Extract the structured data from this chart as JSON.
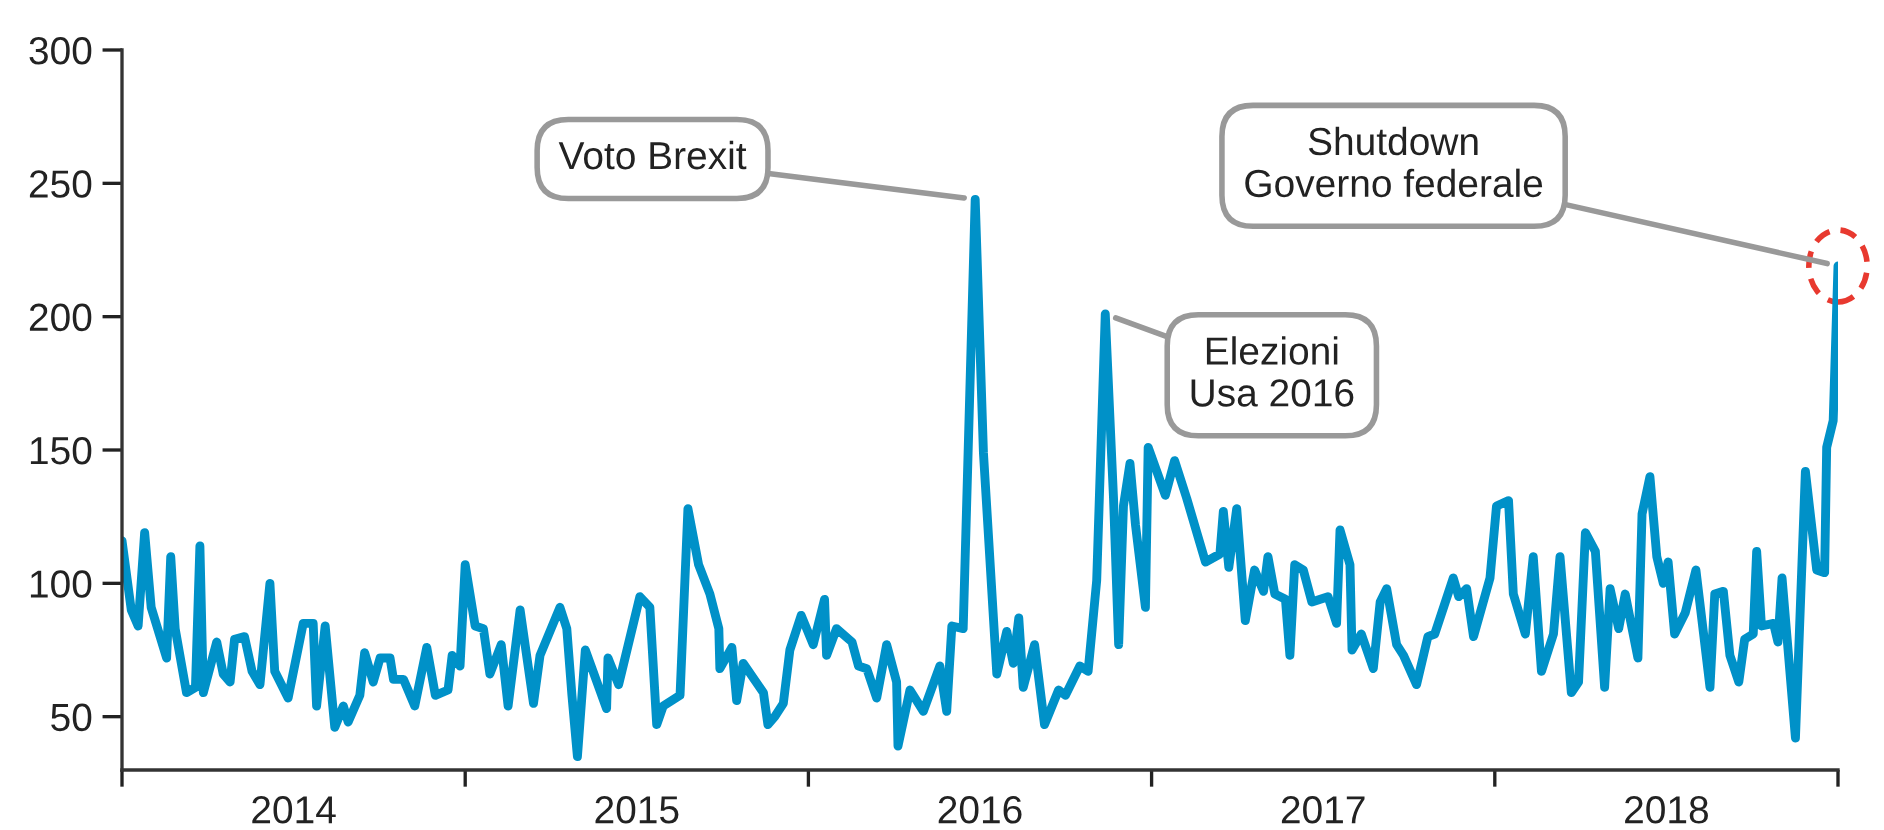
{
  "chart_data": {
    "type": "line",
    "x": [
      2014.0,
      2014.027,
      2014.047,
      2014.066,
      2014.085,
      2014.13,
      2014.142,
      2014.155,
      2014.188,
      2014.214,
      2014.227,
      2014.237,
      2014.276,
      2014.295,
      2014.315,
      2014.328,
      2014.357,
      2014.379,
      2014.402,
      2014.431,
      2014.445,
      2014.484,
      2014.528,
      2014.557,
      2014.567,
      2014.592,
      2014.62,
      2014.645,
      2014.659,
      2014.693,
      2014.707,
      2014.732,
      2014.752,
      2014.781,
      2014.791,
      2014.82,
      2014.853,
      2014.888,
      2014.913,
      2014.95,
      2014.962,
      2014.985,
      2015.0,
      2015.029,
      2015.053,
      2015.072,
      2015.105,
      2015.125,
      2015.16,
      2015.199,
      2015.218,
      2015.276,
      2015.296,
      2015.311,
      2015.327,
      2015.35,
      2015.412,
      2015.416,
      2015.447,
      2015.509,
      2015.538,
      2015.558,
      2015.577,
      2015.626,
      2015.649,
      2015.68,
      2015.713,
      2015.739,
      2015.742,
      2015.777,
      2015.791,
      2015.81,
      2015.869,
      2015.882,
      2015.902,
      2015.927,
      2015.946,
      2015.979,
      2016.014,
      2016.047,
      2016.053,
      2016.082,
      2016.127,
      2016.146,
      2016.17,
      2016.199,
      2016.228,
      2016.257,
      2016.261,
      2016.296,
      2016.335,
      2016.383,
      2016.403,
      2016.418,
      2016.451,
      2016.486,
      2016.51,
      2016.549,
      2016.578,
      2016.597,
      2016.613,
      2016.626,
      2016.659,
      2016.688,
      2016.729,
      2016.749,
      2016.791,
      2016.815,
      2016.84,
      2016.865,
      2016.889,
      2016.904,
      2016.918,
      2016.937,
      2016.953,
      2016.982,
      2016.99,
      2017.04,
      2017.067,
      2017.102,
      2017.157,
      2017.199,
      2017.209,
      2017.225,
      2017.248,
      2017.273,
      2017.3,
      2017.326,
      2017.339,
      2017.359,
      2017.39,
      2017.403,
      2017.417,
      2017.442,
      2017.467,
      2017.514,
      2017.539,
      2017.549,
      2017.578,
      2017.584,
      2017.611,
      2017.646,
      2017.666,
      2017.685,
      2017.714,
      2017.734,
      2017.772,
      2017.805,
      2017.825,
      2017.879,
      2017.895,
      2017.918,
      2017.938,
      2017.986,
      2018.005,
      2018.04,
      2018.054,
      2018.089,
      2018.112,
      2018.136,
      2018.171,
      2018.19,
      2018.223,
      2018.244,
      2018.264,
      2018.293,
      2018.32,
      2018.336,
      2018.361,
      2018.38,
      2018.417,
      2018.429,
      2018.452,
      2018.472,
      2018.491,
      2018.505,
      2018.524,
      2018.555,
      2018.586,
      2018.627,
      2018.641,
      2018.666,
      2018.685,
      2018.711,
      2018.728,
      2018.753,
      2018.763,
      2018.777,
      2018.812,
      2018.825,
      2018.837,
      2018.876,
      2018.905,
      2018.938,
      2018.961,
      2018.967,
      2018.986,
      2019.0
    ],
    "series": [
      {
        "color": "#0091c8",
        "values": [
          116,
          90,
          84,
          119,
          91,
          72,
          110,
          83,
          59,
          61,
          114,
          59,
          78,
          66,
          63,
          79,
          80,
          67,
          62,
          100,
          67,
          57,
          85,
          85,
          54,
          84,
          46,
          54,
          48,
          58,
          74,
          63,
          72,
          72,
          64,
          64,
          54,
          76,
          58,
          60,
          73,
          69,
          107,
          84,
          83,
          66,
          77,
          54,
          90,
          55,
          73,
          91,
          83,
          58,
          35,
          75,
          53,
          72,
          62,
          95,
          91,
          47,
          54,
          58,
          128,
          107,
          96,
          83,
          68,
          76,
          56,
          70,
          59,
          47,
          50,
          55,
          75,
          88,
          77,
          94,
          73,
          83,
          78,
          69,
          68,
          57,
          77,
          63,
          39,
          60,
          52,
          69,
          52,
          84,
          83,
          244,
          149,
          66,
          82,
          70,
          87,
          61,
          77,
          47,
          60,
          58,
          69,
          67,
          101,
          201,
          132,
          77,
          129,
          145,
          122,
          91,
          151,
          133,
          146,
          132,
          108,
          111,
          127,
          106,
          128,
          86,
          105,
          97,
          110,
          96,
          94,
          73,
          107,
          105,
          93,
          95,
          85,
          120,
          107,
          75,
          81,
          68,
          93,
          98,
          77,
          73,
          62,
          80,
          81,
          102,
          95,
          98,
          80,
          102,
          129,
          131,
          96,
          81,
          110,
          67,
          81,
          110,
          59,
          63,
          119,
          112,
          61,
          98,
          83,
          96,
          72,
          126,
          140,
          110,
          100,
          108,
          81,
          89,
          105,
          61,
          96,
          97,
          73,
          63,
          79,
          81,
          112,
          84,
          85,
          78,
          102,
          42,
          142,
          105,
          104,
          151,
          161,
          219
        ]
      }
    ],
    "xlim": [
      2014,
      2019
    ],
    "xticks": [
      {
        "value": 2014,
        "label": null
      },
      {
        "value": 2014.5,
        "label": "2014"
      },
      {
        "value": 2015,
        "label": null
      },
      {
        "value": 2015.5,
        "label": "2015"
      },
      {
        "value": 2016,
        "label": null
      },
      {
        "value": 2016.5,
        "label": "2016"
      },
      {
        "value": 2017,
        "label": null
      },
      {
        "value": 2017.5,
        "label": "2017"
      },
      {
        "value": 2018,
        "label": null
      },
      {
        "value": 2018.5,
        "label": "2018"
      },
      {
        "value": 2019,
        "label": null
      }
    ],
    "ylim": [
      30,
      300
    ],
    "yticks": [
      50,
      100,
      150,
      200,
      250,
      300
    ],
    "grid": false,
    "legend": false,
    "annotations": [
      {
        "text": "Voto Brexit",
        "x": 2016.486,
        "y": 244
      },
      {
        "text": "Elezioni\nUsa 2016",
        "x": 2016.865,
        "y": 201
      },
      {
        "text": "Shutdown\nGoverno federale",
        "x": 2019.0,
        "y": 219
      }
    ]
  }
}
